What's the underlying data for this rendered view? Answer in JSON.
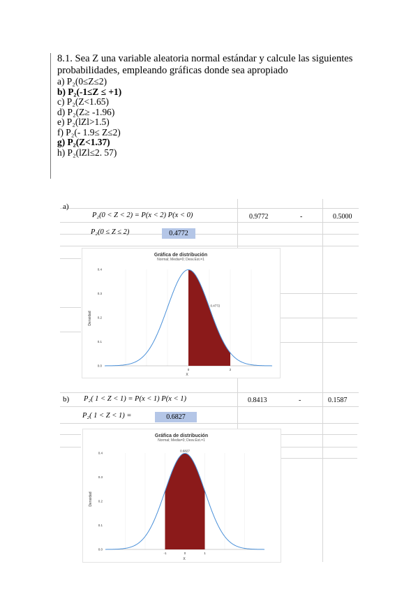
{
  "problem": {
    "title_line1": "8.1. Sea Z una variable aleatoria normal estándar y calcule las siguientes",
    "title_line2": "probabilidades, empleando gráficas donde sea apropiado",
    "items": [
      "a) P₂(0≤Z≤2)",
      "b) P₂(-1≤Z ≤ +1)",
      "c) P₂(Z<1.65)",
      "d) P₂(Z≥ -1.96)",
      "e) P₂(lZl>1.5)",
      "f) P₂(- 1.9≤ Z≤2)",
      "g) P₂(Z<1.37)",
      "h) P₂(lZl≤2. 57)"
    ]
  },
  "section_a": {
    "label": "a)",
    "formula": "P₂(0 < Z < 2) = P(x < 2)    P(x < 0)",
    "value1": "0.9772",
    "op": "-",
    "value2": "0.5000",
    "result_label": "P₂(0 ≤ Z ≤ 2)",
    "result_value": "0.4772",
    "chart": {
      "title": "Gráfica de distribución",
      "subtitle": "Normal; Media=0; Desv.Est.=1",
      "ylabel": "Densidad",
      "xlabel": "X",
      "y_ticks": [
        "0.4",
        "0.3",
        "0.2",
        "0.1",
        "0.0"
      ],
      "x_ticks": [
        "0",
        "2"
      ],
      "shaded_label": "0.4772"
    }
  },
  "section_b": {
    "label": "b)",
    "formula": "P₂(  1 < Z < 1) = P(x < 1)    P(x <    1)",
    "value1": "0.8413",
    "op": "-",
    "value2": "0.1587",
    "result_label": "P₂(  1 < Z < 1) =",
    "result_value": "0.6827",
    "chart": {
      "title": "Gráfica de distribución",
      "subtitle": "Normal; Media=0; Desv.Est.=1",
      "ylabel": "Densidad",
      "xlabel": "X",
      "y_ticks": [
        "0.4",
        "0.3",
        "0.2",
        "0.1",
        "0.0"
      ],
      "x_ticks": [
        "-1",
        "0",
        "1"
      ],
      "shaded_label": "0.6827"
    }
  },
  "chart_data": [
    {
      "type": "area",
      "title": "Gráfica de distribución",
      "subtitle": "Normal; Media=0; Desv.Est.=1",
      "xlabel": "X",
      "ylabel": "Densidad",
      "distribution": "normal",
      "mean": 0,
      "sd": 1,
      "xlim": [
        -4,
        4
      ],
      "ylim": [
        0,
        0.4
      ],
      "shaded_interval": [
        0,
        2
      ],
      "shaded_probability": 0.4772,
      "shade_color": "#8b1a1a",
      "curve_color": "#4a90d9"
    },
    {
      "type": "area",
      "title": "Gráfica de distribución",
      "subtitle": "Normal; Media=0; Desv.Est.=1",
      "xlabel": "X",
      "ylabel": "Densidad",
      "distribution": "normal",
      "mean": 0,
      "sd": 1,
      "xlim": [
        -4,
        4
      ],
      "ylim": [
        0,
        0.4
      ],
      "shaded_interval": [
        -1,
        1
      ],
      "shaded_probability": 0.6827,
      "shade_color": "#8b1a1a",
      "curve_color": "#4a90d9"
    }
  ]
}
